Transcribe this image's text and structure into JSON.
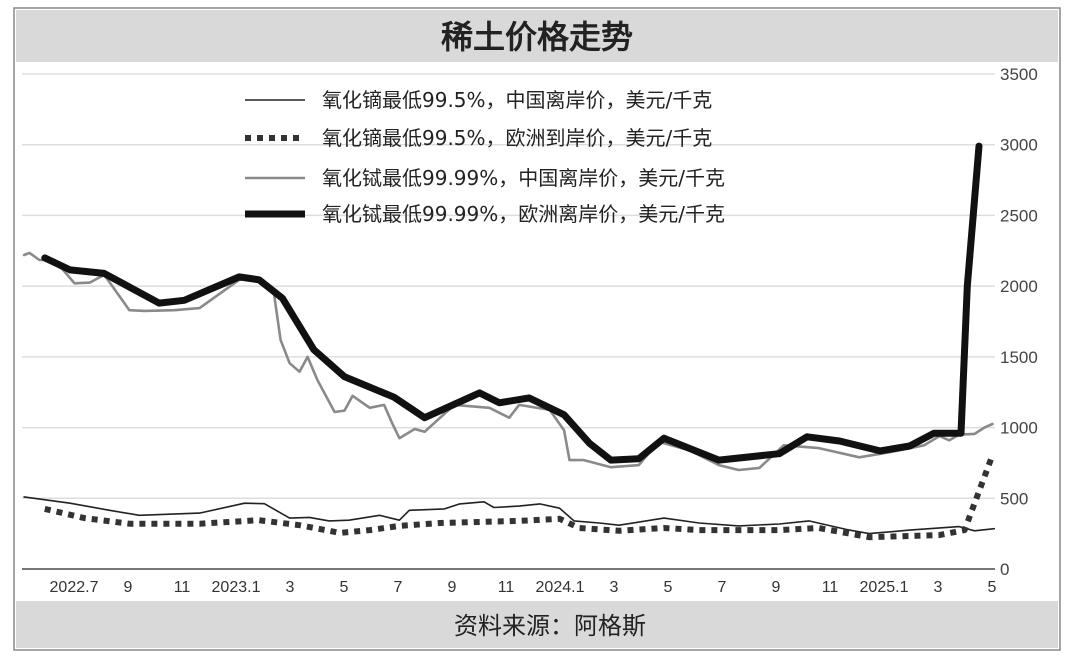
{
  "chart_data": {
    "type": "line",
    "title": "稀土价格走势",
    "source": "资料来源：阿格斯",
    "xlabel": "",
    "ylabel": "",
    "ylim": [
      0,
      3500
    ],
    "yticks": [
      0,
      500,
      1000,
      1500,
      2000,
      2500,
      3000,
      3500
    ],
    "y_axis_side": "right",
    "grid": "horizontal",
    "legend_placement": "top-left",
    "xticks": [
      {
        "label": "2022.7",
        "date": "2022-07-01"
      },
      {
        "label": "9",
        "date": "2022-09-01"
      },
      {
        "label": "11",
        "date": "2022-11-01"
      },
      {
        "label": "2023.1",
        "date": "2023-01-01"
      },
      {
        "label": "3",
        "date": "2023-03-01"
      },
      {
        "label": "5",
        "date": "2023-05-01"
      },
      {
        "label": "7",
        "date": "2023-07-01"
      },
      {
        "label": "9",
        "date": "2023-09-01"
      },
      {
        "label": "11",
        "date": "2023-11-01"
      },
      {
        "label": "2024.1",
        "date": "2024-01-01"
      },
      {
        "label": "3",
        "date": "2024-03-01"
      },
      {
        "label": "5",
        "date": "2024-05-01"
      },
      {
        "label": "7",
        "date": "2024-07-01"
      },
      {
        "label": "9",
        "date": "2024-09-01"
      },
      {
        "label": "11",
        "date": "2024-11-01"
      },
      {
        "label": "2025.1",
        "date": "2025-01-01"
      },
      {
        "label": "3",
        "date": "2025-03-01"
      },
      {
        "label": "5",
        "date": "2025-05-01"
      }
    ],
    "series": [
      {
        "name": "氧化镝最低99.5%，中国离岸价，美元/千克",
        "style": "thin-solid",
        "color": "#222222",
        "points": [
          [
            "2022-05-10",
            510
          ],
          [
            "2022-07-01",
            465
          ],
          [
            "2022-08-15",
            415
          ],
          [
            "2022-09-18",
            380
          ],
          [
            "2022-11-25",
            395
          ],
          [
            "2023-01-15",
            465
          ],
          [
            "2023-02-07",
            462
          ],
          [
            "2023-03-05",
            360
          ],
          [
            "2023-03-27",
            365
          ],
          [
            "2023-04-19",
            340
          ],
          [
            "2023-05-11",
            345
          ],
          [
            "2023-06-15",
            380
          ],
          [
            "2023-07-07",
            345
          ],
          [
            "2023-07-18",
            415
          ],
          [
            "2023-08-27",
            425
          ],
          [
            "2023-09-14",
            460
          ],
          [
            "2023-10-11",
            475
          ],
          [
            "2023-10-22",
            435
          ],
          [
            "2023-11-20",
            445
          ],
          [
            "2023-12-13",
            460
          ],
          [
            "2024-01-05",
            430
          ],
          [
            "2024-01-21",
            340
          ],
          [
            "2024-02-19",
            325
          ],
          [
            "2024-03-11",
            310
          ],
          [
            "2024-05-01",
            360
          ],
          [
            "2024-06-10",
            325
          ],
          [
            "2024-07-24",
            305
          ],
          [
            "2024-09-09",
            318
          ],
          [
            "2024-10-12",
            340
          ],
          [
            "2024-11-27",
            275
          ],
          [
            "2024-12-19",
            250
          ],
          [
            "2025-02-04",
            275
          ],
          [
            "2025-03-29",
            300
          ],
          [
            "2025-04-16",
            270
          ],
          [
            "2025-05-08",
            285
          ]
        ]
      },
      {
        "name": "氧化镝最低99.5%，欧洲到岸价，美元/千克",
        "style": "dotted",
        "color": "#333333",
        "points": [
          [
            "2022-06-03",
            425
          ],
          [
            "2022-07-17",
            360
          ],
          [
            "2022-09-07",
            320
          ],
          [
            "2022-11-25",
            320
          ],
          [
            "2023-02-01",
            345
          ],
          [
            "2023-03-16",
            310
          ],
          [
            "2023-05-01",
            255
          ],
          [
            "2023-06-04",
            275
          ],
          [
            "2023-07-07",
            305
          ],
          [
            "2023-08-22",
            325
          ],
          [
            "2023-11-20",
            340
          ],
          [
            "2024-01-05",
            355
          ],
          [
            "2024-01-27",
            290
          ],
          [
            "2024-03-11",
            270
          ],
          [
            "2024-05-01",
            290
          ],
          [
            "2024-06-10",
            275
          ],
          [
            "2024-09-09",
            275
          ],
          [
            "2024-10-23",
            290
          ],
          [
            "2024-12-19",
            225
          ],
          [
            "2025-03-07",
            240
          ],
          [
            "2025-04-05",
            275
          ],
          [
            "2025-05-06",
            805
          ]
        ]
      },
      {
        "name": "氧化铽最低99.99%，中国离岸价，美元/千克",
        "style": "gray-solid",
        "color": "#8a8a8a",
        "points": [
          [
            "2022-05-10",
            2220
          ],
          [
            "2022-05-16",
            2235
          ],
          [
            "2022-05-27",
            2185
          ],
          [
            "2022-06-14",
            2185
          ],
          [
            "2022-07-06",
            2020
          ],
          [
            "2022-07-23",
            2025
          ],
          [
            "2022-08-09",
            2080
          ],
          [
            "2022-09-07",
            1830
          ],
          [
            "2022-09-24",
            1825
          ],
          [
            "2022-10-27",
            1830
          ],
          [
            "2022-11-25",
            1845
          ],
          [
            "2023-01-09",
            2045
          ],
          [
            "2023-01-26",
            2060
          ],
          [
            "2023-02-17",
            1975
          ],
          [
            "2023-02-25",
            1620
          ],
          [
            "2023-03-05",
            1455
          ],
          [
            "2023-03-16",
            1395
          ],
          [
            "2023-03-25",
            1500
          ],
          [
            "2023-04-06",
            1335
          ],
          [
            "2023-04-25",
            1110
          ],
          [
            "2023-05-06",
            1120
          ],
          [
            "2023-05-15",
            1225
          ],
          [
            "2023-06-04",
            1140
          ],
          [
            "2023-06-20",
            1160
          ],
          [
            "2023-06-29",
            1030
          ],
          [
            "2023-07-07",
            925
          ],
          [
            "2023-07-24",
            990
          ],
          [
            "2023-08-05",
            970
          ],
          [
            "2023-09-08",
            1160
          ],
          [
            "2023-10-17",
            1140
          ],
          [
            "2023-11-09",
            1070
          ],
          [
            "2023-11-20",
            1160
          ],
          [
            "2023-12-24",
            1125
          ],
          [
            "2024-01-10",
            980
          ],
          [
            "2024-01-16",
            770
          ],
          [
            "2024-02-02",
            770
          ],
          [
            "2024-03-02",
            720
          ],
          [
            "2024-04-03",
            735
          ],
          [
            "2024-04-25",
            900
          ],
          [
            "2024-05-29",
            840
          ],
          [
            "2024-07-02",
            735
          ],
          [
            "2024-07-24",
            700
          ],
          [
            "2024-08-17",
            715
          ],
          [
            "2024-09-14",
            875
          ],
          [
            "2024-10-23",
            855
          ],
          [
            "2024-12-08",
            790
          ],
          [
            "2025-01-11",
            825
          ],
          [
            "2025-02-20",
            875
          ],
          [
            "2025-03-07",
            940
          ],
          [
            "2025-03-18",
            910
          ],
          [
            "2025-03-29",
            950
          ],
          [
            "2025-04-16",
            955
          ],
          [
            "2025-04-27",
            1000
          ],
          [
            "2025-05-06",
            1025
          ]
        ]
      },
      {
        "name": "氧化铽最低99.99%，欧洲离岸价，美元/千克",
        "style": "thick-solid",
        "color": "#111111",
        "points": [
          [
            "2022-06-03",
            2200
          ],
          [
            "2022-07-01",
            2115
          ],
          [
            "2022-08-09",
            2090
          ],
          [
            "2022-10-10",
            1880
          ],
          [
            "2022-11-08",
            1900
          ],
          [
            "2023-01-09",
            2065
          ],
          [
            "2023-02-01",
            2045
          ],
          [
            "2023-02-27",
            1915
          ],
          [
            "2023-04-02",
            1550
          ],
          [
            "2023-05-06",
            1360
          ],
          [
            "2023-07-01",
            1215
          ],
          [
            "2023-08-05",
            1070
          ],
          [
            "2023-10-06",
            1245
          ],
          [
            "2023-10-28",
            1175
          ],
          [
            "2023-12-01",
            1210
          ],
          [
            "2024-01-10",
            1090
          ],
          [
            "2024-02-08",
            890
          ],
          [
            "2024-03-02",
            770
          ],
          [
            "2024-04-03",
            780
          ],
          [
            "2024-05-01",
            925
          ],
          [
            "2024-07-02",
            770
          ],
          [
            "2024-09-09",
            815
          ],
          [
            "2024-10-10",
            935
          ],
          [
            "2024-11-16",
            905
          ],
          [
            "2025-01-01",
            835
          ],
          [
            "2025-02-04",
            870
          ],
          [
            "2025-03-01",
            960
          ],
          [
            "2025-04-01",
            960
          ],
          [
            "2025-04-08",
            2000
          ],
          [
            "2025-04-21",
            2990
          ]
        ]
      }
    ]
  }
}
